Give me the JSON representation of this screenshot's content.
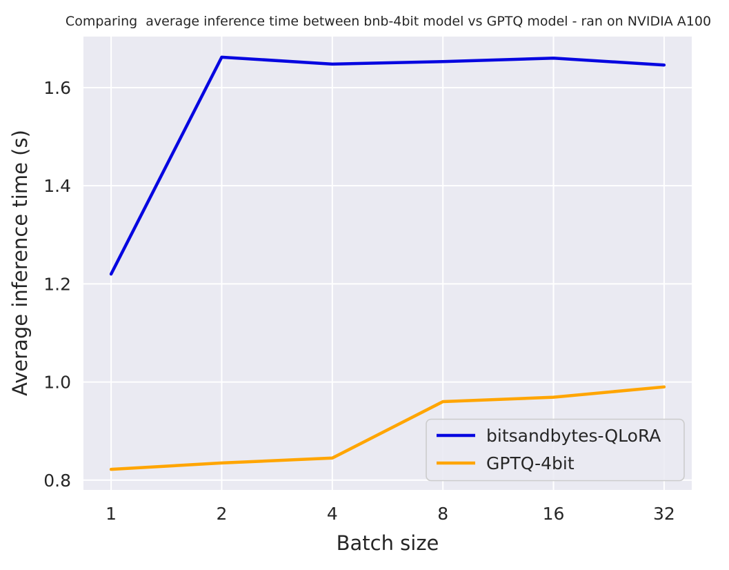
{
  "figure": {
    "background_color": "#ffffff",
    "plot_background_color": "#eaeaf2",
    "gridline_color": "#ffffff",
    "text_color": "#262626",
    "legend_border_color": "#cccccc"
  },
  "chart_data": {
    "type": "line",
    "title": "Comparing  average inference time between bnb-4bit model vs GPTQ model - ran on NVIDIA A100",
    "xlabel": "Batch size",
    "ylabel": "Average inference time (s)",
    "categories": [
      "1",
      "2",
      "4",
      "8",
      "16",
      "32"
    ],
    "x_values": [
      1,
      2,
      4,
      8,
      16,
      32
    ],
    "x_scale": "log2-evenly-spaced",
    "y_ticks": [
      "0.8",
      "1.0",
      "1.2",
      "1.4",
      "1.6"
    ],
    "y_tick_values": [
      0.8,
      1.0,
      1.2,
      1.4,
      1.6
    ],
    "ylim": [
      0.78,
      1.704
    ],
    "grid": true,
    "legend_position": "lower right",
    "series": [
      {
        "name": "bitsandbytes-QLoRA",
        "color": "#0707e0",
        "values": [
          1.22,
          1.662,
          1.648,
          1.653,
          1.66,
          1.646
        ]
      },
      {
        "name": "GPTQ-4bit",
        "color": "#ffa500",
        "values": [
          0.822,
          0.835,
          0.845,
          0.96,
          0.969,
          0.99
        ]
      }
    ]
  }
}
